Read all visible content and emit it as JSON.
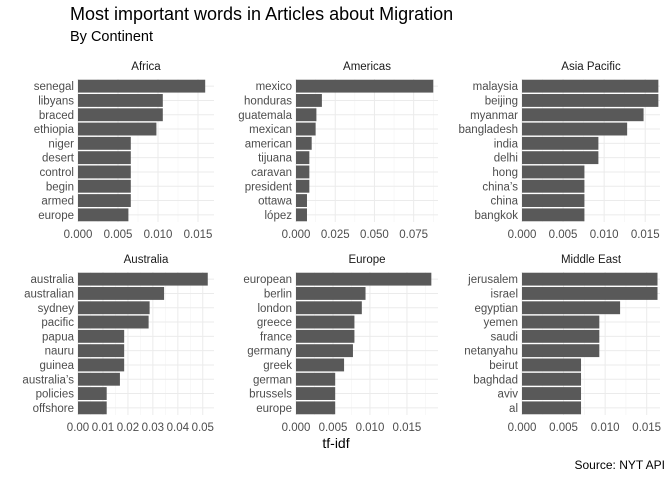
{
  "title": "Most important words in Articles about Migration",
  "subtitle": "By Continent",
  "xlabel": "tf-idf",
  "caption": "Source: NYT API",
  "chart_data": [
    {
      "type": "bar",
      "orientation": "horizontal",
      "facet": "Africa",
      "categories": [
        "senegal",
        "libyans",
        "braced",
        "ethiopia",
        "niger",
        "desert",
        "control",
        "begin",
        "armed",
        "europe"
      ],
      "values": [
        0.0159,
        0.0106,
        0.0106,
        0.0098,
        0.0066,
        0.0066,
        0.0066,
        0.0066,
        0.0066,
        0.0063
      ],
      "xlim": [
        0,
        0.017
      ],
      "xticks": [
        0,
        0.005,
        0.01,
        0.015
      ],
      "xtick_labels": [
        "0.000",
        "0.005",
        "0.010",
        "0.015"
      ],
      "color": "#595959"
    },
    {
      "type": "bar",
      "orientation": "horizontal",
      "facet": "Americas",
      "categories": [
        "mexico",
        "honduras",
        "guatemala",
        "mexican",
        "american",
        "tijuana",
        "caravan",
        "president",
        "ottawa",
        "lópez"
      ],
      "values": [
        0.0875,
        0.0165,
        0.013,
        0.0125,
        0.01,
        0.0085,
        0.0085,
        0.0085,
        0.007,
        0.007
      ],
      "xlim": [
        0,
        0.0905
      ],
      "xticks": [
        0,
        0.025,
        0.05,
        0.075
      ],
      "xtick_labels": [
        "0.000",
        "0.025",
        "0.050",
        "0.075"
      ],
      "color": "#595959"
    },
    {
      "type": "bar",
      "orientation": "horizontal",
      "facet": "Asia Pacific",
      "categories": [
        "malaysia",
        "beijing",
        "myanmar",
        "bangladesh",
        "india",
        "delhi",
        "hong",
        "china’s",
        "china",
        "bangkok"
      ],
      "values": [
        0.0166,
        0.0166,
        0.0148,
        0.0128,
        0.0093,
        0.0093,
        0.0076,
        0.0076,
        0.0076,
        0.0076
      ],
      "xlim": [
        0,
        0.0168
      ],
      "xticks": [
        0,
        0.005,
        0.01,
        0.015
      ],
      "xtick_labels": [
        "0.000",
        "0.005",
        "0.010",
        "0.015"
      ],
      "color": "#595959"
    },
    {
      "type": "bar",
      "orientation": "horizontal",
      "facet": "Australia",
      "categories": [
        "australia",
        "australian",
        "sydney",
        "pacific",
        "papua",
        "nauru",
        "guinea",
        "australia’s",
        "policies",
        "offshore"
      ],
      "values": [
        0.052,
        0.0345,
        0.0287,
        0.0283,
        0.0185,
        0.0185,
        0.0185,
        0.0168,
        0.0115,
        0.0115
      ],
      "xlim": [
        0,
        0.0545
      ],
      "xticks": [
        0,
        0.01,
        0.02,
        0.03,
        0.04,
        0.05
      ],
      "xtick_labels": [
        "0.00",
        "0.01",
        "0.02",
        "0.03",
        "0.04",
        "0.05"
      ],
      "color": "#595959"
    },
    {
      "type": "bar",
      "orientation": "horizontal",
      "facet": "Europe",
      "categories": [
        "european",
        "berlin",
        "london",
        "greece",
        "france",
        "germany",
        "greek",
        "german",
        "brussels",
        "europe"
      ],
      "values": [
        0.0183,
        0.0094,
        0.0089,
        0.0079,
        0.0079,
        0.0077,
        0.0065,
        0.0053,
        0.0053,
        0.0053
      ],
      "xlim": [
        0,
        0.0192
      ],
      "xticks": [
        0,
        0.005,
        0.01,
        0.015
      ],
      "xtick_labels": [
        "0.000",
        "0.005",
        "0.010",
        "0.015"
      ],
      "color": "#595959"
    },
    {
      "type": "bar",
      "orientation": "horizontal",
      "facet": "Middle East",
      "categories": [
        "jerusalem",
        "israel",
        "egyptian",
        "yemen",
        "saudi",
        "netanyahu",
        "beirut",
        "baghdad",
        "aviv",
        "al"
      ],
      "values": [
        0.0163,
        0.0163,
        0.0118,
        0.0093,
        0.0093,
        0.0093,
        0.0071,
        0.0071,
        0.0071,
        0.0071
      ],
      "xlim": [
        0,
        0.0166
      ],
      "xticks": [
        0,
        0.005,
        0.01,
        0.015
      ],
      "xtick_labels": [
        "0.000",
        "0.005",
        "0.010",
        "0.015"
      ],
      "color": "#595959"
    }
  ]
}
